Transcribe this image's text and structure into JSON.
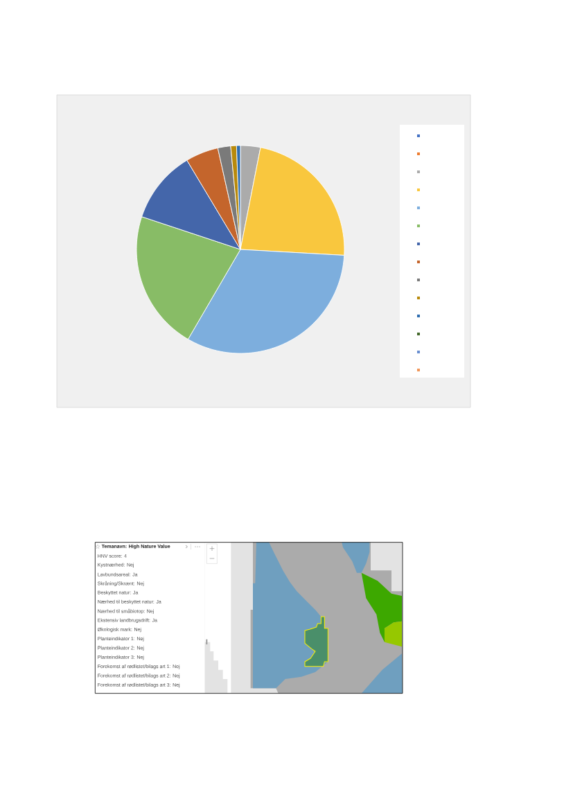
{
  "chart_data": {
    "type": "pie",
    "categories": [
      null,
      null,
      null,
      null,
      null,
      null,
      null,
      null,
      null,
      null,
      null,
      null,
      null,
      null
    ],
    "values": [
      null,
      null,
      3.1,
      22.8,
      32.5,
      21.7,
      11.3,
      5.1,
      2.0,
      0.9,
      0.6,
      null,
      null,
      null
    ],
    "colors": [
      "#4472c4",
      "#ed7d31",
      "#ababab",
      "#f9c73e",
      "#7daedd",
      "#88bc66",
      "#4466aa",
      "#c4652c",
      "#7a7a7a",
      "#b88a0c",
      "#2e6daf",
      "#43682b",
      "#698ed0",
      "#f1975a"
    ],
    "annotations": [
      "Temanavn: High Nature Value",
      "HNV score: 4",
      "Kystnærhed: Nej",
      "Lavbundsareal: Ja",
      "Skråning/Skrænt: Nej",
      "Beskyttet natur: Ja",
      "Nærhed til beskyttet natur: Ja",
      "Nærhed til småbiotop: Nej",
      "Ekstensiv landbrugsdrift: Ja",
      "Økologisk mark: Nej",
      "Planteindikator 1: Nej",
      "Planteindikator 2: Nej",
      "Planteindikator 3: Nej",
      "Forekomst af rødlistet/bilags art 1: Nej",
      "Forekomst af rødlistet/bilags art 2: Nej",
      "Forekomst af rødlistet/bilags art 3: Nej"
    ]
  }
}
